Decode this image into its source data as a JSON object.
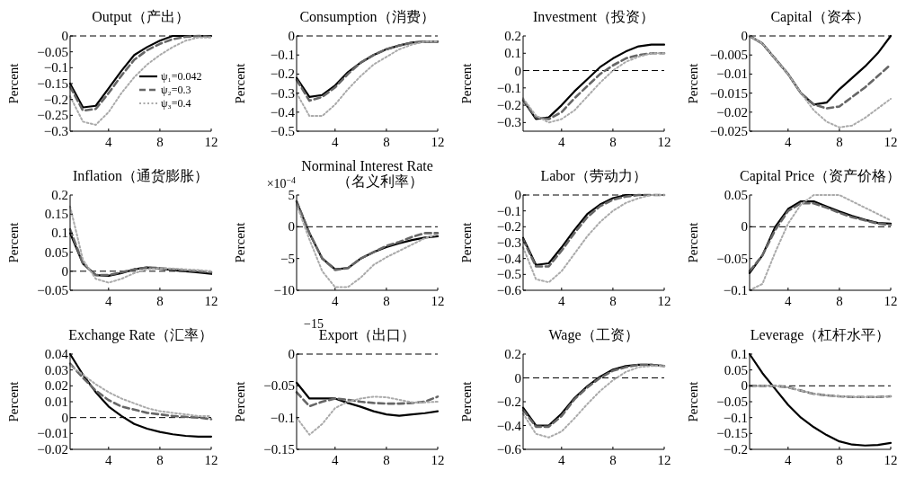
{
  "chart_data": [
    {
      "type": "line",
      "title": "Output（产出）",
      "ylabel": "Percent",
      "x": [
        1,
        2,
        3,
        4,
        5,
        6,
        7,
        8,
        9,
        10,
        11,
        12
      ],
      "xlim": [
        1,
        12
      ],
      "xticks": [
        4,
        8,
        12
      ],
      "ylim": [
        -0.3,
        0
      ],
      "yticks": [
        0,
        -0.05,
        -0.1,
        -0.15,
        -0.2,
        -0.25,
        -0.3
      ],
      "legend": "right",
      "ref_lines": [
        {
          "axis": "y",
          "value": 0,
          "line_style": "dashed",
          "color": "#000000"
        }
      ],
      "series": [
        {
          "name": "ψ₁=0.042",
          "color": "#000000",
          "line_style": "solid",
          "values": [
            -0.15,
            -0.225,
            -0.22,
            -0.165,
            -0.11,
            -0.06,
            -0.035,
            -0.015,
            0,
            0,
            0,
            0
          ]
        },
        {
          "name": "ψ₂=0.3",
          "color": "#666666",
          "line_style": "dashed",
          "values": [
            -0.16,
            -0.235,
            -0.23,
            -0.18,
            -0.125,
            -0.075,
            -0.045,
            -0.025,
            -0.01,
            -0.003,
            0,
            -0.003
          ]
        },
        {
          "name": "ψ₃=0.4",
          "color": "#aaaaaa",
          "line_style": "dotted",
          "values": [
            -0.19,
            -0.27,
            -0.28,
            -0.24,
            -0.18,
            -0.13,
            -0.09,
            -0.06,
            -0.035,
            -0.015,
            -0.005,
            -0.005
          ]
        }
      ]
    },
    {
      "type": "line",
      "title": "Consumption（消费）",
      "ylabel": "Percent",
      "x": [
        1,
        2,
        3,
        4,
        5,
        6,
        7,
        8,
        9,
        10,
        11,
        12
      ],
      "xlim": [
        1,
        12
      ],
      "xticks": [
        4,
        8,
        12
      ],
      "ylim": [
        -0.5,
        0
      ],
      "yticks": [
        0,
        -0.1,
        -0.2,
        -0.3,
        -0.4,
        -0.5
      ],
      "ref_lines": [
        {
          "axis": "y",
          "value": 0,
          "line_style": "dashed",
          "color": "#000000"
        }
      ],
      "series": [
        {
          "color": "#000000",
          "line_style": "solid",
          "values": [
            -0.22,
            -0.32,
            -0.31,
            -0.26,
            -0.19,
            -0.14,
            -0.1,
            -0.07,
            -0.05,
            -0.035,
            -0.03,
            -0.03
          ]
        },
        {
          "color": "#666666",
          "line_style": "dashed",
          "values": [
            -0.23,
            -0.34,
            -0.32,
            -0.27,
            -0.2,
            -0.14,
            -0.1,
            -0.07,
            -0.05,
            -0.035,
            -0.03,
            -0.03
          ]
        },
        {
          "color": "#aaaaaa",
          "line_style": "dotted",
          "values": [
            -0.3,
            -0.42,
            -0.42,
            -0.36,
            -0.28,
            -0.21,
            -0.15,
            -0.11,
            -0.07,
            -0.045,
            -0.03,
            -0.03
          ]
        }
      ]
    },
    {
      "type": "line",
      "title": "Investment（投资）",
      "ylabel": "Percent",
      "x": [
        1,
        2,
        3,
        4,
        5,
        6,
        7,
        8,
        9,
        10,
        11,
        12
      ],
      "xlim": [
        1,
        12
      ],
      "xticks": [
        4,
        8,
        12
      ],
      "ylim": [
        -0.35,
        0.2
      ],
      "yticks": [
        0.2,
        0.1,
        0,
        -0.1,
        -0.2,
        -0.3
      ],
      "ref_lines": [
        {
          "axis": "y",
          "value": 0,
          "line_style": "dashed",
          "color": "#000000"
        }
      ],
      "series": [
        {
          "color": "#000000",
          "line_style": "solid",
          "values": [
            -0.17,
            -0.28,
            -0.27,
            -0.2,
            -0.12,
            -0.05,
            0.02,
            0.07,
            0.11,
            0.14,
            0.15,
            0.15
          ]
        },
        {
          "color": "#666666",
          "line_style": "dashed",
          "values": [
            -0.17,
            -0.27,
            -0.28,
            -0.24,
            -0.16,
            -0.09,
            -0.02,
            0.03,
            0.07,
            0.09,
            0.1,
            0.1
          ]
        },
        {
          "color": "#aaaaaa",
          "line_style": "dotted",
          "values": [
            -0.16,
            -0.26,
            -0.3,
            -0.28,
            -0.23,
            -0.15,
            -0.07,
            0,
            0.05,
            0.08,
            0.1,
            0.1
          ]
        }
      ]
    },
    {
      "type": "line",
      "title": "Capital（资本）",
      "ylabel": "Percent",
      "x": [
        1,
        2,
        3,
        4,
        5,
        6,
        7,
        8,
        9,
        10,
        11,
        12
      ],
      "xlim": [
        1,
        12
      ],
      "xticks": [
        4,
        8,
        12
      ],
      "ylim": [
        -0.025,
        0
      ],
      "yticks": [
        0,
        -0.005,
        -0.01,
        -0.015,
        -0.02,
        -0.025
      ],
      "ref_lines": [
        {
          "axis": "y",
          "value": 0,
          "line_style": "dashed",
          "color": "#000000"
        }
      ],
      "series": [
        {
          "color": "#000000",
          "line_style": "solid",
          "values": [
            0,
            -0.002,
            -0.006,
            -0.01,
            -0.015,
            -0.018,
            -0.0175,
            -0.014,
            -0.011,
            -0.008,
            -0.0045,
            0
          ]
        },
        {
          "color": "#666666",
          "line_style": "dashed",
          "values": [
            0,
            -0.002,
            -0.006,
            -0.01,
            -0.015,
            -0.018,
            -0.019,
            -0.0185,
            -0.016,
            -0.0135,
            -0.0105,
            -0.0075
          ]
        },
        {
          "color": "#aaaaaa",
          "line_style": "dotted",
          "values": [
            0,
            -0.002,
            -0.006,
            -0.01,
            -0.015,
            -0.0195,
            -0.0225,
            -0.024,
            -0.0235,
            -0.0215,
            -0.019,
            -0.0165
          ]
        }
      ]
    },
    {
      "type": "line",
      "title": "Inflation（通货膨胀）",
      "ylabel": "Percent",
      "x": [
        1,
        2,
        3,
        4,
        5,
        6,
        7,
        8,
        9,
        10,
        11,
        12
      ],
      "xlim": [
        1,
        12
      ],
      "xticks": [
        4,
        8,
        12
      ],
      "ylim": [
        -0.05,
        0.2
      ],
      "yticks": [
        0.2,
        0.15,
        0.1,
        0.05,
        0,
        -0.05
      ],
      "ref_lines": [
        {
          "axis": "y",
          "value": 0,
          "line_style": "dashed",
          "color": "#000000"
        }
      ],
      "series": [
        {
          "color": "#000000",
          "line_style": "solid",
          "values": [
            0.1,
            0.02,
            -0.01,
            -0.012,
            -0.005,
            0.005,
            0.01,
            0.007,
            0.003,
            0,
            -0.003,
            -0.007
          ]
        },
        {
          "color": "#666666",
          "line_style": "dashed",
          "values": [
            0.11,
            0.02,
            -0.01,
            -0.01,
            -0.003,
            0.005,
            0.01,
            0.008,
            0.005,
            0.002,
            0,
            -0.003
          ]
        },
        {
          "color": "#aaaaaa",
          "line_style": "dotted",
          "values": [
            0.17,
            0.03,
            -0.02,
            -0.03,
            -0.02,
            -0.005,
            0.005,
            0.008,
            0.007,
            0.005,
            0.003,
            0
          ]
        }
      ]
    },
    {
      "type": "line",
      "title": "Norminal Interest Rate（名义利率）",
      "ylabel": "Percent",
      "annotations": [
        "×10$^{−4}$"
      ],
      "x": [
        1,
        2,
        3,
        4,
        5,
        6,
        7,
        8,
        9,
        10,
        11,
        12
      ],
      "xlim": [
        1,
        12
      ],
      "xticks": [
        4,
        8,
        12
      ],
      "ylim": [
        -10,
        5
      ],
      "yticks": [
        5,
        0,
        -5,
        -10
      ],
      "ref_lines": [
        {
          "axis": "y",
          "value": 0,
          "line_style": "dashed",
          "color": "#000000"
        }
      ],
      "series": [
        {
          "color": "#000000",
          "line_style": "solid",
          "values": [
            4,
            -1,
            -5,
            -6.7,
            -6.5,
            -5,
            -4,
            -3.2,
            -2.6,
            -2.1,
            -1.7,
            -1.5
          ]
        },
        {
          "color": "#666666",
          "line_style": "dashed",
          "values": [
            4,
            -1,
            -5,
            -6.8,
            -6.5,
            -5,
            -4,
            -3,
            -2.4,
            -1.6,
            -1,
            -1
          ]
        },
        {
          "color": "#aaaaaa",
          "line_style": "dotted",
          "values": [
            3.5,
            -2,
            -7,
            -9.5,
            -9.5,
            -8,
            -6,
            -4.8,
            -3.8,
            -2.8,
            -1.8,
            -1.2
          ]
        }
      ]
    },
    {
      "type": "line",
      "title": "Labor（劳动力）",
      "ylabel": "Percent",
      "x": [
        1,
        2,
        3,
        4,
        5,
        6,
        7,
        8,
        9,
        10,
        11,
        12
      ],
      "xlim": [
        1,
        12
      ],
      "xticks": [
        4,
        8,
        12
      ],
      "ylim": [
        -0.6,
        0
      ],
      "yticks": [
        0,
        -0.1,
        -0.2,
        -0.3,
        -0.4,
        -0.5,
        -0.6
      ],
      "ref_lines": [
        {
          "axis": "y",
          "value": 0,
          "line_style": "dashed",
          "color": "#000000"
        }
      ],
      "series": [
        {
          "color": "#000000",
          "line_style": "solid",
          "values": [
            -0.27,
            -0.44,
            -0.43,
            -0.33,
            -0.22,
            -0.12,
            -0.06,
            -0.02,
            0,
            0,
            0,
            0
          ]
        },
        {
          "color": "#666666",
          "line_style": "dashed",
          "values": [
            -0.28,
            -0.45,
            -0.45,
            -0.35,
            -0.24,
            -0.14,
            -0.07,
            -0.03,
            -0.01,
            0,
            0,
            0
          ]
        },
        {
          "color": "#aaaaaa",
          "line_style": "dotted",
          "values": [
            -0.33,
            -0.53,
            -0.55,
            -0.48,
            -0.37,
            -0.26,
            -0.17,
            -0.1,
            -0.05,
            -0.02,
            0,
            0
          ]
        }
      ]
    },
    {
      "type": "line",
      "title": "Capital Price（资产价格）",
      "ylabel": "Percent",
      "x": [
        1,
        2,
        3,
        4,
        5,
        6,
        7,
        8,
        9,
        10,
        11,
        12
      ],
      "xlim": [
        1,
        12
      ],
      "xticks": [
        4,
        8,
        12
      ],
      "ylim": [
        -0.1,
        0.05
      ],
      "yticks": [
        0.05,
        0,
        -0.05,
        -0.1
      ],
      "ref_lines": [
        {
          "axis": "y",
          "value": 0,
          "line_style": "dashed",
          "color": "#000000"
        }
      ],
      "series": [
        {
          "color": "#000000",
          "line_style": "solid",
          "values": [
            -0.073,
            -0.045,
            0,
            0.028,
            0.04,
            0.04,
            0.032,
            0.024,
            0.017,
            0.011,
            0.006,
            0.005
          ]
        },
        {
          "color": "#666666",
          "line_style": "dashed",
          "values": [
            -0.07,
            -0.045,
            -0.005,
            0.025,
            0.037,
            0.037,
            0.03,
            0.022,
            0.015,
            0.01,
            0.005,
            0.003
          ]
        },
        {
          "color": "#aaaaaa",
          "line_style": "dotted",
          "values": [
            -0.1,
            -0.09,
            -0.04,
            0.005,
            0.035,
            0.05,
            0.05,
            0.05,
            0.04,
            0.03,
            0.02,
            0.01
          ]
        }
      ]
    },
    {
      "type": "line",
      "title": "Exchange Rate（汇率）",
      "ylabel": "Percent",
      "x": [
        1,
        2,
        3,
        4,
        5,
        6,
        7,
        8,
        9,
        10,
        11,
        12
      ],
      "xlim": [
        1,
        12
      ],
      "xticks": [
        4,
        8,
        12
      ],
      "ylim": [
        -0.02,
        0.04
      ],
      "yticks": [
        0.04,
        0.03,
        0.02,
        0.01,
        0,
        -0.01,
        -0.02
      ],
      "ref_lines": [
        {
          "axis": "y",
          "value": 0,
          "line_style": "dashed",
          "color": "#000000"
        }
      ],
      "series": [
        {
          "color": "#000000",
          "line_style": "solid",
          "values": [
            0.04,
            0.027,
            0.016,
            0.007,
            0.001,
            -0.004,
            -0.007,
            -0.009,
            -0.0105,
            -0.0115,
            -0.012,
            -0.012
          ]
        },
        {
          "color": "#666666",
          "line_style": "dashed",
          "values": [
            0.034,
            0.025,
            0.017,
            0.011,
            0.007,
            0.005,
            0.003,
            0.002,
            0.001,
            0.0005,
            0,
            -0.001
          ]
        },
        {
          "color": "#aaaaaa",
          "line_style": "dotted",
          "values": [
            0.033,
            0.027,
            0.021,
            0.016,
            0.012,
            0.009,
            0.006,
            0.004,
            0.003,
            0.002,
            0.001,
            0.001
          ]
        }
      ]
    },
    {
      "type": "line",
      "title": "Export（出口）",
      "ylabel": "Percent",
      "annotations": [
        "−15"
      ],
      "x": [
        1,
        2,
        3,
        4,
        5,
        6,
        7,
        8,
        9,
        10,
        11,
        12
      ],
      "xlim": [
        1,
        12
      ],
      "xticks": [
        4,
        8,
        12
      ],
      "ylim": [
        -0.15,
        0
      ],
      "yticks": [
        0,
        -0.05,
        -0.1,
        -0.15
      ],
      "ref_lines": [
        {
          "axis": "y",
          "value": 0,
          "line_style": "dashed",
          "color": "#000000"
        }
      ],
      "series": [
        {
          "color": "#000000",
          "line_style": "solid",
          "values": [
            -0.045,
            -0.07,
            -0.07,
            -0.07,
            -0.077,
            -0.083,
            -0.09,
            -0.095,
            -0.097,
            -0.095,
            -0.093,
            -0.09
          ]
        },
        {
          "color": "#666666",
          "line_style": "dashed",
          "values": [
            -0.06,
            -0.082,
            -0.075,
            -0.07,
            -0.072,
            -0.075,
            -0.077,
            -0.078,
            -0.078,
            -0.077,
            -0.075,
            -0.067
          ]
        },
        {
          "color": "#aaaaaa",
          "line_style": "dotted",
          "values": [
            -0.1,
            -0.127,
            -0.11,
            -0.085,
            -0.075,
            -0.07,
            -0.067,
            -0.068,
            -0.072,
            -0.076,
            -0.076,
            -0.075
          ]
        }
      ]
    },
    {
      "type": "line",
      "title": "Wage（工资）",
      "ylabel": "Percent",
      "x": [
        1,
        2,
        3,
        4,
        5,
        6,
        7,
        8,
        9,
        10,
        11,
        12
      ],
      "xlim": [
        1,
        12
      ],
      "xticks": [
        4,
        8,
        12
      ],
      "ylim": [
        -0.6,
        0.2
      ],
      "yticks": [
        0.2,
        0,
        -0.2,
        -0.4,
        -0.6
      ],
      "ref_lines": [
        {
          "axis": "y",
          "value": 0,
          "line_style": "dashed",
          "color": "#000000"
        }
      ],
      "series": [
        {
          "color": "#000000",
          "line_style": "solid",
          "values": [
            -0.25,
            -0.4,
            -0.4,
            -0.3,
            -0.17,
            -0.07,
            0.01,
            0.07,
            0.1,
            0.11,
            0.11,
            0.1
          ]
        },
        {
          "color": "#666666",
          "line_style": "dashed",
          "values": [
            -0.27,
            -0.41,
            -0.41,
            -0.32,
            -0.18,
            -0.08,
            0,
            0.06,
            0.09,
            0.11,
            0.11,
            0.1
          ]
        },
        {
          "color": "#aaaaaa",
          "line_style": "dotted",
          "values": [
            -0.3,
            -0.47,
            -0.5,
            -0.45,
            -0.34,
            -0.22,
            -0.11,
            -0.02,
            0.05,
            0.09,
            0.1,
            0.1
          ]
        }
      ]
    },
    {
      "type": "line",
      "title": "Leverage（杠杆水平）",
      "ylabel": "Percent",
      "x": [
        1,
        2,
        3,
        4,
        5,
        6,
        7,
        8,
        9,
        10,
        11,
        12
      ],
      "xlim": [
        1,
        12
      ],
      "xticks": [
        4,
        8,
        12
      ],
      "ylim": [
        -0.2,
        0.1
      ],
      "yticks": [
        0.1,
        0.05,
        0,
        -0.05,
        -0.1,
        -0.15,
        -0.2
      ],
      "ref_lines": [
        {
          "axis": "y",
          "value": 0,
          "line_style": "dashed",
          "color": "#000000"
        }
      ],
      "series": [
        {
          "color": "#000000",
          "line_style": "solid",
          "values": [
            0.1,
            0.04,
            -0.01,
            -0.06,
            -0.1,
            -0.13,
            -0.155,
            -0.175,
            -0.185,
            -0.188,
            -0.186,
            -0.18
          ]
        },
        {
          "color": "#666666",
          "line_style": "dashed",
          "values": [
            0,
            0,
            0,
            -0.005,
            -0.015,
            -0.025,
            -0.03,
            -0.033,
            -0.035,
            -0.035,
            -0.035,
            -0.033
          ]
        },
        {
          "color": "#aaaaaa",
          "line_style": "dotted",
          "values": [
            -0.002,
            0,
            0,
            -0.005,
            -0.015,
            -0.025,
            -0.03,
            -0.033,
            -0.035,
            -0.035,
            -0.035,
            -0.033
          ]
        }
      ]
    }
  ]
}
